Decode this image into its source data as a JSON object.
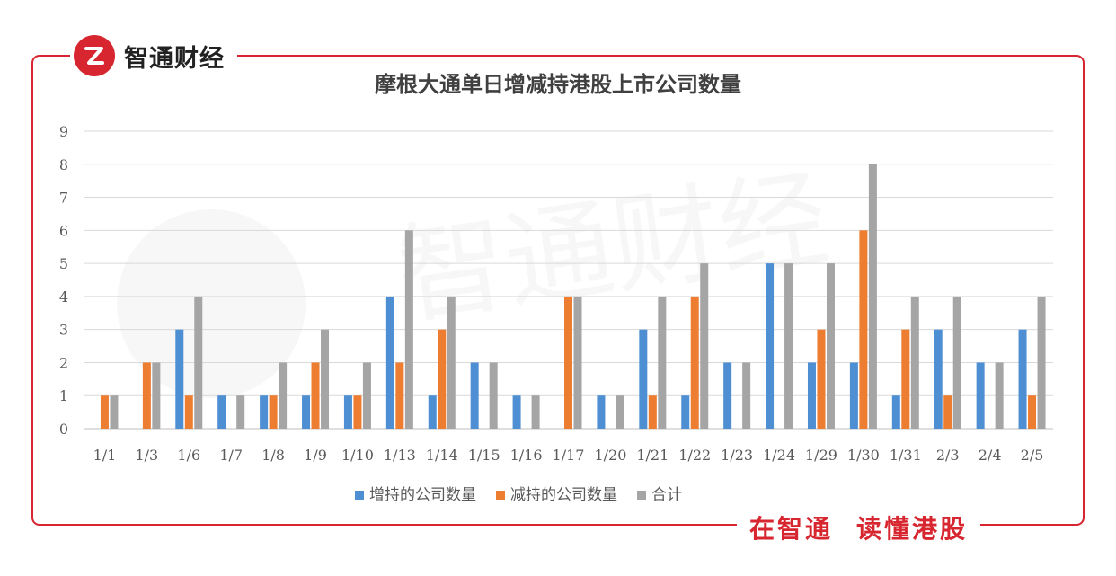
{
  "brand": {
    "name": "智通财经",
    "logo_icon": "zhitong-logo-icon",
    "color": "#d7262f"
  },
  "slogan": {
    "part1": "在智通",
    "part2": "读懂港股"
  },
  "watermark": {
    "text": "智通财经"
  },
  "chart_data": {
    "type": "bar",
    "title": "摩根大通单日增减持港股上市公司数量",
    "categories": [
      "1/1",
      "1/3",
      "1/6",
      "1/7",
      "1/8",
      "1/9",
      "1/10",
      "1/13",
      "1/14",
      "1/15",
      "1/16",
      "1/17",
      "1/20",
      "1/21",
      "1/22",
      "1/23",
      "1/24",
      "1/29",
      "1/30",
      "1/31",
      "2/3",
      "2/4",
      "2/5"
    ],
    "series": [
      {
        "name": "增持的公司数量",
        "color": "#4e8fd3",
        "values": [
          0,
          0,
          3,
          1,
          1,
          1,
          1,
          4,
          1,
          2,
          1,
          0,
          1,
          3,
          1,
          2,
          5,
          2,
          2,
          1,
          3,
          2,
          3
        ]
      },
      {
        "name": "减持的公司数量",
        "color": "#ec7d31",
        "values": [
          1,
          2,
          1,
          0,
          1,
          2,
          1,
          2,
          3,
          0,
          0,
          4,
          0,
          1,
          4,
          0,
          0,
          3,
          6,
          3,
          1,
          0,
          1
        ]
      },
      {
        "name": "合计",
        "color": "#a5a5a5",
        "values": [
          1,
          2,
          4,
          1,
          2,
          3,
          2,
          6,
          4,
          2,
          1,
          4,
          1,
          4,
          5,
          2,
          5,
          5,
          8,
          4,
          4,
          2,
          4
        ]
      }
    ],
    "ylim": [
      0,
      9
    ],
    "yticks": [
      0,
      1,
      2,
      3,
      4,
      5,
      6,
      7,
      8,
      9
    ],
    "grid": true,
    "legend_position": "bottom"
  }
}
